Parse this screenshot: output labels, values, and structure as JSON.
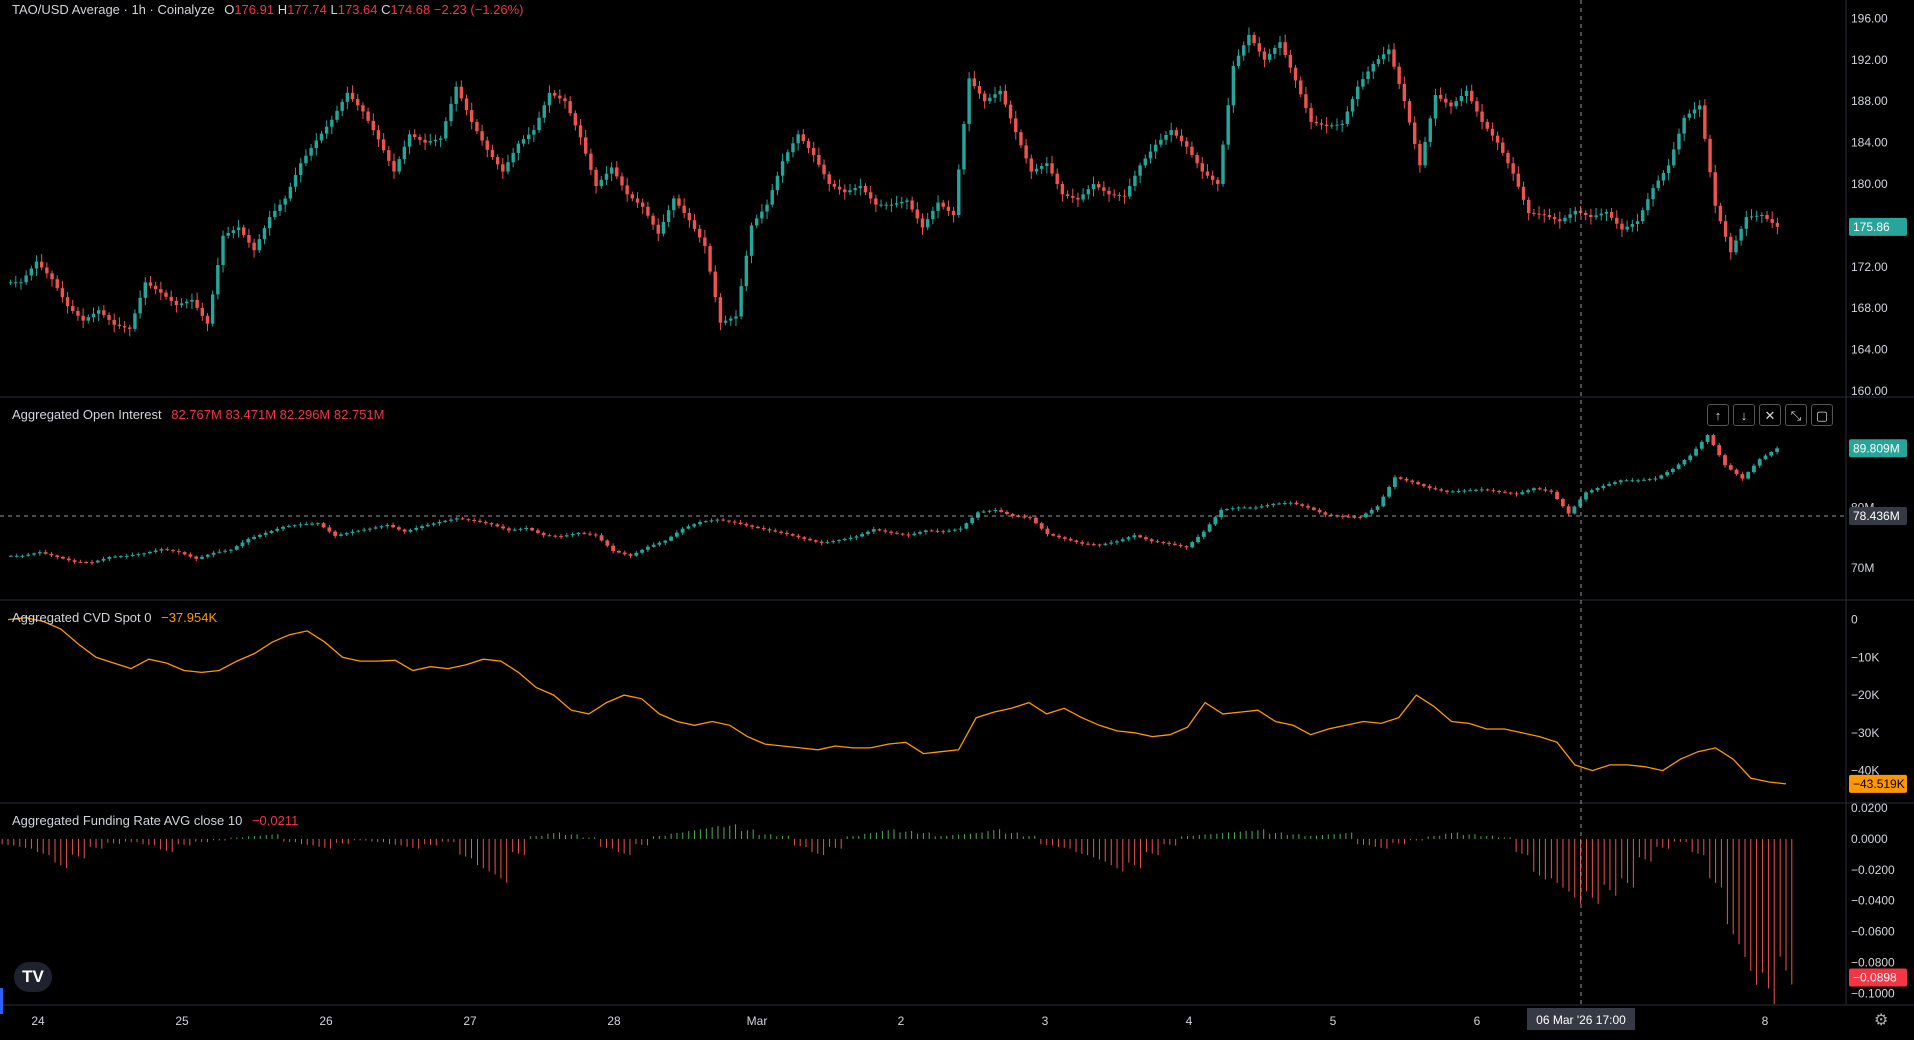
{
  "legend_main": {
    "symbol": "TAO/USD Average · 1h · Coinalyze",
    "o_lbl": "O",
    "o": "176.91",
    "h_lbl": "H",
    "h": "177.74",
    "l_lbl": "L",
    "l": "173.64",
    "c_lbl": "C",
    "c": "174.68",
    "chg": "−2.23 (−1.26%)"
  },
  "legend_oi": {
    "name": "Aggregated Open Interest",
    "o": "82.767M",
    "h": "83.471M",
    "l": "82.296M",
    "c": "82.751M"
  },
  "legend_cvd": {
    "name": "Aggregated CVD Spot 0",
    "value": "−37.954K"
  },
  "legend_fr": {
    "name": "Aggregated Funding Rate AVG close 10",
    "value": "−0.0211"
  },
  "pane_buttons": [
    "↑",
    "↓",
    "✕",
    "⤡",
    "▢"
  ],
  "time_axis": {
    "labels": [
      "24",
      "25",
      "26",
      "27",
      "28",
      "Mar",
      "2",
      "3",
      "4",
      "5",
      "6",
      "8"
    ],
    "crosshair_label": "06 Mar '26   17:00"
  },
  "colors": {
    "up": "#26a69a",
    "down": "#ef5350",
    "cvd": "#ff9800",
    "bg": "#000000",
    "grid": "#2a2e39",
    "text": "#d1d4dc"
  },
  "chart_data": [
    {
      "type": "candlestick",
      "title": "TAO/USD Average · 1h · Coinalyze",
      "y_ticks": [
        "196.00",
        "192.00",
        "188.00",
        "184.00",
        "180.00",
        "176.00",
        "172.00",
        "168.00",
        "164.00",
        "160.00"
      ],
      "ylim": [
        160,
        197
      ],
      "last_value": "175.86",
      "series": [
        {
          "name": "close",
          "values": [
            170.5,
            172.5,
            170.8,
            168.2,
            166.8,
            167.8,
            166.4,
            166.0,
            170.5,
            169.5,
            168.3,
            168.8,
            166.5,
            175.0,
            175.8,
            173.6,
            176.8,
            178.6,
            182.0,
            184.2,
            186.2,
            188.8,
            187.0,
            184.3,
            181.2,
            184.8,
            184.0,
            184.4,
            189.4,
            186.0,
            183.3,
            181.2,
            183.9,
            185.2,
            188.8,
            188.0,
            184.5,
            179.8,
            181.6,
            179.0,
            177.8,
            175.2,
            178.6,
            176.5,
            174.0,
            166.6,
            167.2,
            176.0,
            178.0,
            182.2,
            184.8,
            182.8,
            180.0,
            179.2,
            179.8,
            178.0,
            178.0,
            178.4,
            175.8,
            178.2,
            177.0,
            190.2,
            188.0,
            189.0,
            185.0,
            181.2,
            182.0,
            179.0,
            178.5,
            180.0,
            179.0,
            178.8,
            181.8,
            183.8,
            185.2,
            183.6,
            181.2,
            180.0,
            191.4,
            194.4,
            192.0,
            193.7,
            190.0,
            186.0,
            185.6,
            185.8,
            189.4,
            191.6,
            193.0,
            188.0,
            181.8,
            188.6,
            187.5,
            189.0,
            186.0,
            184.0,
            181.0,
            177.2,
            177.0,
            176.4,
            177.4,
            176.8,
            177.3,
            175.6,
            176.4,
            179.6,
            181.8,
            186.4,
            187.6,
            177.9,
            173.4,
            176.8,
            177.0,
            175.86
          ]
        }
      ]
    },
    {
      "type": "candlestick",
      "title": "Aggregated Open Interest",
      "y_ticks": [
        "80M",
        "70M"
      ],
      "ylim": [
        66,
        94
      ],
      "last_value": "89.809M",
      "crosshair_value": "78.436M",
      "series": [
        {
          "name": "close",
          "values": [
            72.0,
            72.6,
            71.8,
            71.0,
            70.9,
            71.8,
            72.0,
            72.4,
            73.1,
            72.6,
            71.5,
            72.5,
            73.0,
            74.8,
            75.8,
            76.8,
            77.2,
            77.4,
            75.3,
            76.0,
            76.5,
            77.1,
            76.0,
            76.9,
            77.6,
            78.2,
            77.8,
            77.2,
            76.2,
            76.6,
            75.4,
            75.2,
            75.8,
            75.4,
            72.8,
            72.0,
            73.5,
            74.5,
            76.5,
            77.6,
            78.0,
            77.5,
            76.8,
            76.2,
            75.6,
            74.8,
            74.1,
            74.6,
            75.2,
            76.4,
            75.8,
            75.4,
            76.2,
            76.0,
            76.5,
            79.2,
            79.6,
            78.6,
            78.3,
            75.6,
            74.8,
            74.0,
            73.8,
            74.4,
            75.4,
            74.4,
            74.0,
            73.4,
            76.0,
            79.6,
            80.0,
            80.0,
            80.6,
            80.8,
            80.0,
            78.8,
            78.5,
            78.4,
            80.2,
            85.0,
            84.2,
            83.2,
            82.6,
            82.8,
            83.0,
            82.6,
            82.2,
            83.2,
            82.6,
            79.0,
            82.5,
            83.6,
            84.5,
            84.5,
            84.8,
            86.4,
            88.6,
            92.0,
            87.0,
            84.8,
            88.0,
            89.809
          ]
        }
      ]
    },
    {
      "type": "line",
      "title": "Aggregated CVD Spot 0",
      "y_ticks": [
        "0",
        "−10K",
        "−20K",
        "−30K",
        "−40K"
      ],
      "ylim": [
        -47,
        2
      ],
      "last_value": "−43.519K",
      "series": [
        {
          "name": "Aggregated CVD Spot 0",
          "values": [
            0,
            0.5,
            -0.5,
            -2.5,
            -6.5,
            -10.0,
            -11.5,
            -13.0,
            -10.5,
            -11.5,
            -13.5,
            -14.0,
            -13.5,
            -11.0,
            -9.0,
            -6.0,
            -4.0,
            -3.0,
            -6.0,
            -10.0,
            -11.0,
            -11.0,
            -10.8,
            -13.5,
            -12.5,
            -13.0,
            -12.0,
            -10.5,
            -11.0,
            -14.0,
            -18.0,
            -20.0,
            -24.0,
            -25.0,
            -22.0,
            -20.0,
            -21.0,
            -25.0,
            -27.0,
            -28.0,
            -27.0,
            -28.0,
            -31.0,
            -33.0,
            -33.5,
            -34.0,
            -34.5,
            -33.5,
            -34.0,
            -34.0,
            -33.0,
            -32.5,
            -35.5,
            -35.0,
            -34.5,
            -26.0,
            -24.5,
            -23.5,
            -22.0,
            -25.0,
            -23.5,
            -26.0,
            -28.0,
            -29.5,
            -30.0,
            -31.0,
            -30.5,
            -28.5,
            -22.0,
            -25.0,
            -24.5,
            -24.0,
            -27.0,
            -28.0,
            -30.5,
            -29.0,
            -28.0,
            -27.0,
            -27.5,
            -26.0,
            -20.0,
            -23.0,
            -27.0,
            -27.5,
            -29.0,
            -29.0,
            -30.0,
            -31.0,
            -32.5,
            -38.5,
            -40.0,
            -38.5,
            -38.5,
            -39.0,
            -40.0,
            -37.0,
            -35.0,
            -34.0,
            -37.0,
            -42.0,
            -43.0,
            -43.519
          ]
        }
      ]
    },
    {
      "type": "bar",
      "title": "Aggregated Funding Rate AVG close 10",
      "y_ticks": [
        "0.0200",
        "0.0000",
        "−0.0200",
        "−0.0400",
        "−0.0600",
        "−0.0800",
        "−0.1000"
      ],
      "ylim": [
        -0.105,
        0.022
      ],
      "last_value": "−0.0898",
      "series": [
        {
          "name": "Aggregated Funding Rate AVG close 10",
          "values": [
            -0.004,
            -0.006,
            -0.01,
            -0.018,
            -0.012,
            -0.006,
            -0.003,
            -0.002,
            -0.004,
            -0.008,
            -0.004,
            -0.002,
            -0.001,
            0.001,
            0.002,
            0.003,
            -0.002,
            -0.004,
            -0.006,
            -0.003,
            -0.001,
            -0.002,
            -0.004,
            -0.006,
            -0.004,
            -0.002,
            -0.012,
            -0.02,
            -0.027,
            -0.01,
            0.002,
            0.004,
            0.003,
            0.001,
            -0.006,
            -0.01,
            -0.004,
            0.002,
            0.004,
            0.006,
            0.008,
            0.009,
            0.006,
            0.003,
            0.002,
            -0.005,
            -0.01,
            -0.006,
            0.002,
            0.004,
            0.006,
            0.005,
            0.004,
            0.002,
            0.003,
            0.004,
            0.006,
            0.004,
            0.002,
            -0.004,
            -0.006,
            -0.01,
            -0.014,
            -0.02,
            -0.018,
            -0.01,
            -0.004,
            0.002,
            0.003,
            0.004,
            0.005,
            0.006,
            0.004,
            0.003,
            0.002,
            0.003,
            0.004,
            -0.004,
            -0.006,
            -0.003,
            -0.001,
            0.002,
            0.004,
            0.003,
            0.002,
            0.001,
            -0.01,
            -0.025,
            -0.03,
            -0.04,
            -0.04,
            -0.035,
            -0.03,
            -0.014,
            -0.006,
            -0.002,
            -0.01,
            -0.03,
            -0.065,
            -0.09,
            -0.102,
            -0.0898
          ]
        }
      ]
    }
  ]
}
